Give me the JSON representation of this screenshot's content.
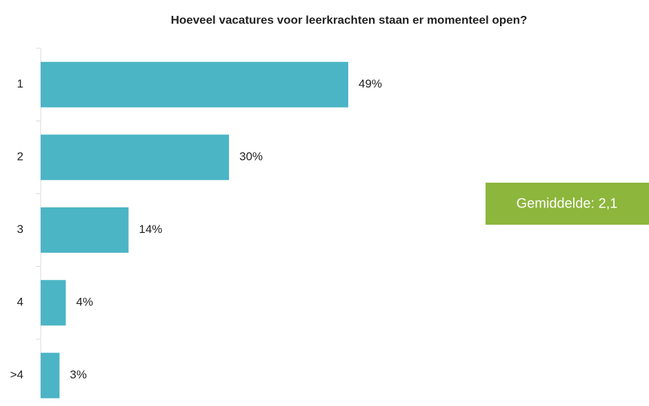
{
  "chart_data": {
    "type": "bar",
    "orientation": "horizontal",
    "title": "Hoeveel vacatures voor leerkrachten staan er momenteel open?",
    "categories": [
      "1",
      "2",
      "3",
      "4",
      ">4"
    ],
    "values": [
      49,
      30,
      14,
      4,
      3
    ],
    "value_labels": [
      "49%",
      "30%",
      "14%",
      "4%",
      "3%"
    ],
    "color": "#4bb5c5",
    "annotation": "Gemiddelde: 2,1",
    "annotation_color": "#8db63c"
  }
}
